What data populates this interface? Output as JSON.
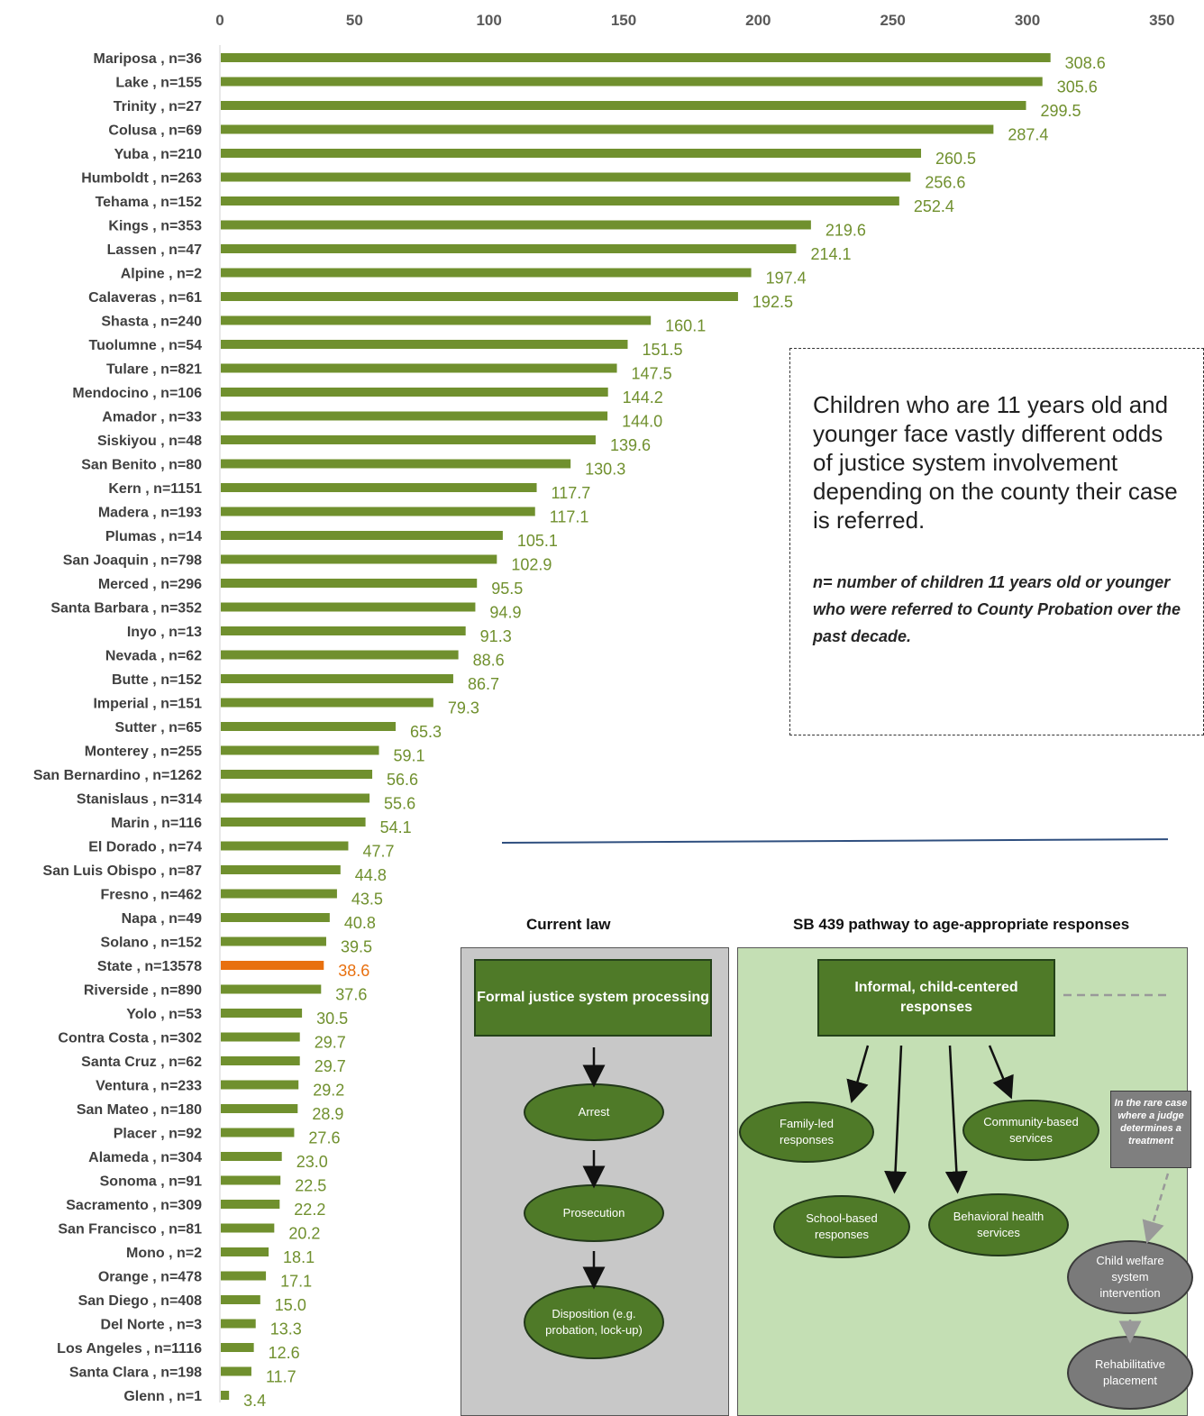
{
  "chart_data": {
    "type": "bar",
    "orientation": "horizontal",
    "xlim": [
      0,
      350
    ],
    "x_ticks": [
      "0",
      "50",
      "100",
      "150",
      "200",
      "250",
      "300",
      "350"
    ],
    "tick_values": [
      0,
      50,
      100,
      150,
      200,
      250,
      300,
      350
    ],
    "x_axis_position": "top",
    "grid": false,
    "legend": "none",
    "bar_color": "#70902e",
    "highlight_color": "#e8700f",
    "highlight_category": "State , n=13578",
    "categories": [
      "Mariposa , n=36",
      "Lake , n=155",
      "Trinity , n=27",
      "Colusa , n=69",
      "Yuba , n=210",
      "Humboldt , n=263",
      "Tehama , n=152",
      "Kings , n=353",
      "Lassen , n=47",
      "Alpine , n=2",
      "Calaveras , n=61",
      "Shasta , n=240",
      "Tuolumne , n=54",
      "Tulare , n=821",
      "Mendocino , n=106",
      "Amador , n=33",
      "Siskiyou , n=48",
      "San Benito , n=80",
      "Kern , n=1151",
      "Madera , n=193",
      "Plumas , n=14",
      "San Joaquin , n=798",
      "Merced , n=296",
      "Santa Barbara , n=352",
      "Inyo , n=13",
      "Nevada , n=62",
      "Butte , n=152",
      "Imperial , n=151",
      "Sutter , n=65",
      "Monterey , n=255",
      "San Bernardino , n=1262",
      "Stanislaus , n=314",
      "Marin , n=116",
      "El Dorado , n=74",
      "San Luis Obispo , n=87",
      "Fresno , n=462",
      "Napa , n=49",
      "Solano , n=152",
      "State , n=13578",
      "Riverside , n=890",
      "Yolo , n=53",
      "Contra Costa , n=302",
      "Santa Cruz , n=62",
      "Ventura , n=233",
      "San Mateo , n=180",
      "Placer , n=92",
      "Alameda , n=304",
      "Sonoma , n=91",
      "Sacramento , n=309",
      "San Francisco , n=81",
      "Mono , n=2",
      "Orange , n=478",
      "San Diego , n=408",
      "Del Norte , n=3",
      "Los Angeles , n=1116",
      "Santa Clara , n=198",
      "Glenn , n=1"
    ],
    "values": [
      308.6,
      305.6,
      299.5,
      287.4,
      260.5,
      256.6,
      252.4,
      219.6,
      214.1,
      197.4,
      192.5,
      160.1,
      151.5,
      147.5,
      144.2,
      144.0,
      139.6,
      130.3,
      117.7,
      117.1,
      105.1,
      102.9,
      95.5,
      94.9,
      91.3,
      88.6,
      86.7,
      79.3,
      65.3,
      59.1,
      56.6,
      55.6,
      54.1,
      47.7,
      44.8,
      43.5,
      40.8,
      39.5,
      38.6,
      37.6,
      30.5,
      29.7,
      29.7,
      29.2,
      28.9,
      27.6,
      23.0,
      22.5,
      22.2,
      20.2,
      18.1,
      17.1,
      15.0,
      13.3,
      12.6,
      11.7,
      3.4
    ],
    "value_labels": [
      "308.6",
      "305.6",
      "299.5",
      "287.4",
      "260.5",
      "256.6",
      "252.4",
      "219.6",
      "214.1",
      "197.4",
      "192.5",
      "160.1",
      "151.5",
      "147.5",
      "144.2",
      "144.0",
      "139.6",
      "130.3",
      "117.7",
      "117.1",
      "105.1",
      "102.9",
      "95.5",
      "94.9",
      "91.3",
      "88.6",
      "86.7",
      "79.3",
      "65.3",
      "59.1",
      "56.6",
      "55.6",
      "54.1",
      "47.7",
      "44.8",
      "43.5",
      "40.8",
      "39.5",
      "38.6",
      "37.6",
      "30.5",
      "29.7",
      "29.7",
      "29.2",
      "28.9",
      "27.6",
      "23.0",
      "22.5",
      "22.2",
      "20.2",
      "18.1",
      "17.1",
      "15.0",
      "13.3",
      "12.6",
      "11.7",
      "3.4"
    ]
  },
  "note": {
    "main": "Children who are 11 years old and younger face vastly different odds of justice system involvement depending on the county their case is referred.",
    "sub": "n= number of children 11 years old or younger who were referred to County Probation over the past decade."
  },
  "diagram": {
    "current_law_title": "Current law",
    "sb439_title": "SB 439 pathway to age-appropriate responses",
    "formal_node": "Formal justice system processing",
    "arrest": "Arrest",
    "prosecution": "Prosecution",
    "disposition": "Disposition (e.g. probation, lock-up)",
    "informal_node": "Informal, child-centered responses",
    "family_led": "Family-led responses",
    "community_based": "Community-based services",
    "school_based": "School-based responses",
    "behavioral_health": "Behavioral health services",
    "side_note": "In the rare case where a judge determines a treatment",
    "child_welfare": "Child welfare system intervention",
    "rehabilitative": "Rehabilitative placement"
  },
  "colors": {
    "current_panel_bg": "#c8c8c8",
    "sb439_panel_bg": "#c4dfb4"
  }
}
